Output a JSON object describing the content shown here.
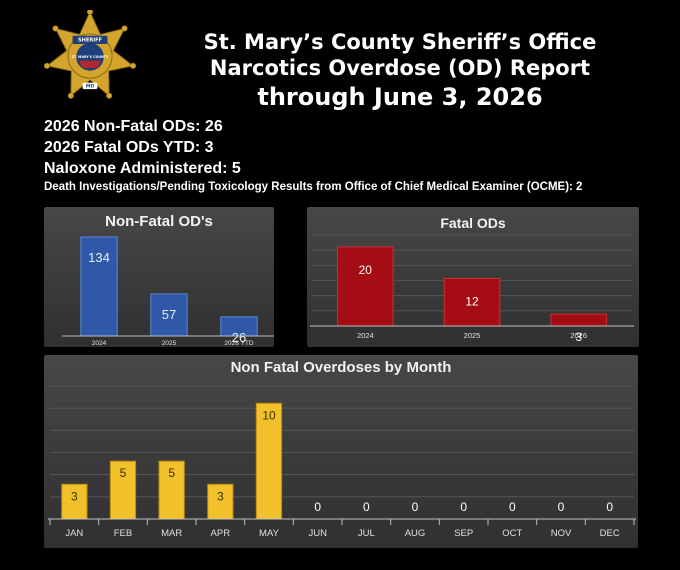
{
  "header": {
    "line1": "St. Mary’s County Sheriff’s Office",
    "line2": "Narcotics Overdose (OD) Report",
    "line3": "through June 3, 2026"
  },
  "badge": {
    "icon": "sheriff-star-badge-icon",
    "text_top": "SHERIFF",
    "text_center": "ST. MARY'S COUNTY",
    "text_bottom": "MD",
    "colors": {
      "gold": "#d4a52c",
      "navy": "#1f3f7a",
      "red": "#b3282d",
      "white": "#ffffff"
    }
  },
  "stats": {
    "nonfatal": "2026 Non-Fatal ODs: 26",
    "fatal": "2026 Fatal ODs YTD: 3",
    "naloxone": "Naloxone Administered: 5",
    "death_investigations": "Death Investigations/Pending Toxicology Results from Office of Chief Medical Examiner (OCME): 2"
  },
  "chart_data": [
    {
      "type": "bar",
      "title": "Non-Fatal OD's",
      "categories": [
        "2024",
        "2025",
        "2026 YTD"
      ],
      "values": [
        134,
        57,
        26
      ],
      "label_mode": "inside-top",
      "color": "#2f58a9",
      "border": "#5d86d6",
      "xlabel": "",
      "ylabel": "",
      "grid": false,
      "legend": "none"
    },
    {
      "type": "bar",
      "title": "Fatal ODs",
      "categories": [
        "2024",
        "2025",
        "2026"
      ],
      "values": [
        20,
        12,
        3
      ],
      "label_mode": "inside-top",
      "color": "#a50d14",
      "border": "#c9303a",
      "ylim": [
        0,
        23
      ],
      "xlabel": "",
      "ylabel": "",
      "grid": true,
      "legend": "none"
    },
    {
      "type": "bar",
      "title": "Non Fatal Overdoses by Month",
      "categories": [
        "JAN",
        "FEB",
        "MAR",
        "APR",
        "MAY",
        "JUN",
        "JUL",
        "AUG",
        "SEP",
        "OCT",
        "NOV",
        "DEC"
      ],
      "values": [
        3,
        5,
        5,
        3,
        10,
        0,
        0,
        0,
        0,
        0,
        0,
        0
      ],
      "label_mode": "inside-top",
      "color": "#f2c02a",
      "border": "#b78c10",
      "ylim": [
        0,
        11.5
      ],
      "xlabel": "",
      "ylabel": "",
      "grid": true,
      "legend": "none"
    }
  ]
}
